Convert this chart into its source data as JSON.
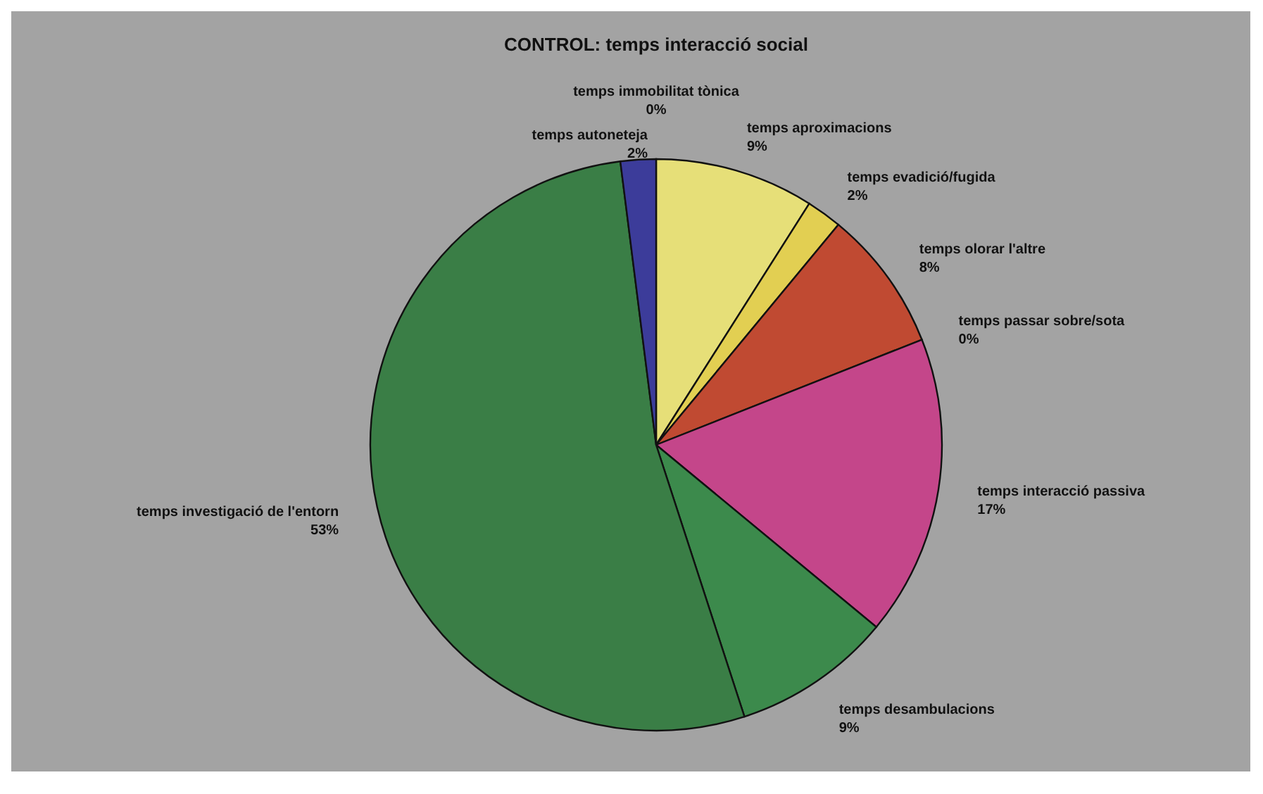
{
  "chart_data": {
    "type": "pie",
    "title": "CONTROL: temps interacció social",
    "categories": [
      "temps immobilitat tònica",
      "temps aproximacions",
      "temps evadició/fugida",
      "temps olorar l'altre",
      "temps passar sobre/sota",
      "temps interacció passiva",
      "temps desambulacions",
      "temps investigació de l'entorn",
      "temps autoneteja"
    ],
    "values": [
      0,
      9,
      2,
      8,
      0,
      17,
      9,
      53,
      2
    ],
    "value_labels": [
      "0%",
      "9%",
      "2%",
      "8%",
      "0%",
      "17%",
      "9%",
      "53%",
      "2%"
    ],
    "colors": [
      "#6a5aa0",
      "#e6df78",
      "#e2cf52",
      "#c04a32",
      "#b85a5a",
      "#c4468a",
      "#3c8a4c",
      "#3a7e46",
      "#3c3c9a"
    ]
  }
}
